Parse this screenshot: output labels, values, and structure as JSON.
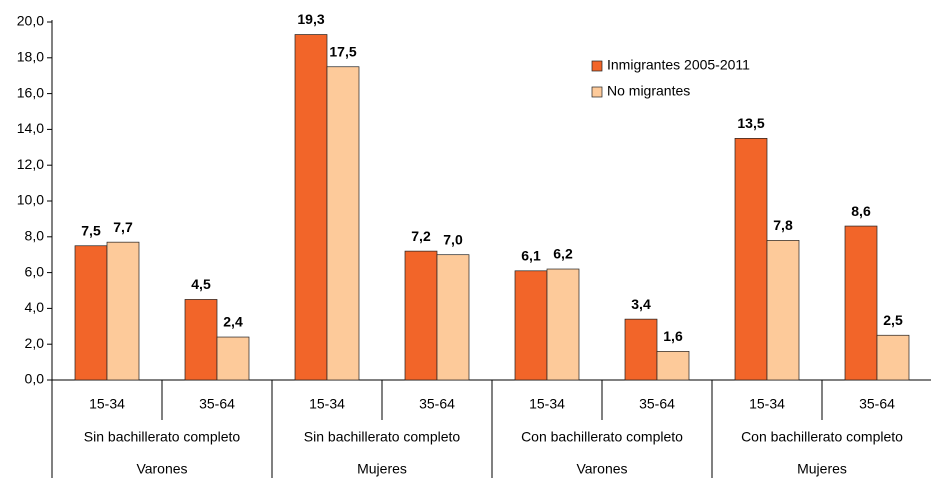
{
  "chart_data": {
    "type": "bar",
    "categories": [
      "15-34",
      "35-64",
      "15-34",
      "35-64",
      "15-34",
      "35-64",
      "15-34",
      "35-64"
    ],
    "category_levels": [
      [
        "Sin bachillerato completo",
        "Sin bachillerato completo",
        "Con bachillerato completo",
        "Con bachillerato completo"
      ],
      [
        "Varones",
        "Mujeres",
        "Varones",
        "Mujeres"
      ]
    ],
    "series": [
      {
        "name": "Inmigrantes 2005-2011",
        "color": "#f26529",
        "values": [
          7.5,
          4.5,
          19.3,
          7.2,
          6.1,
          3.4,
          13.5,
          8.6
        ],
        "value_labels": [
          "7,5",
          "4,5",
          "19,3",
          "7,2",
          "6,1",
          "3,4",
          "13,5",
          "8,6"
        ]
      },
      {
        "name": "No migrantes",
        "color": "#fdca9a",
        "values": [
          7.7,
          2.4,
          17.5,
          7.0,
          6.2,
          1.6,
          7.8,
          2.5
        ],
        "value_labels": [
          "7,7",
          "2,4",
          "17,5",
          "7,0",
          "6,2",
          "1,6",
          "7,8",
          "2,5"
        ]
      }
    ],
    "ylim": [
      0,
      20
    ],
    "yticks": [
      {
        "value": 0,
        "label": "0,0"
      },
      {
        "value": 2,
        "label": "2,0"
      },
      {
        "value": 4,
        "label": "4,0"
      },
      {
        "value": 6,
        "label": "6,0"
      },
      {
        "value": 8,
        "label": "8,0"
      },
      {
        "value": 10,
        "label": "10,0"
      },
      {
        "value": 12,
        "label": "12,0"
      },
      {
        "value": 14,
        "label": "14,0"
      },
      {
        "value": 16,
        "label": "16,0"
      },
      {
        "value": 18,
        "label": "18,0"
      },
      {
        "value": 20,
        "label": "20,0"
      }
    ],
    "grid": false
  }
}
